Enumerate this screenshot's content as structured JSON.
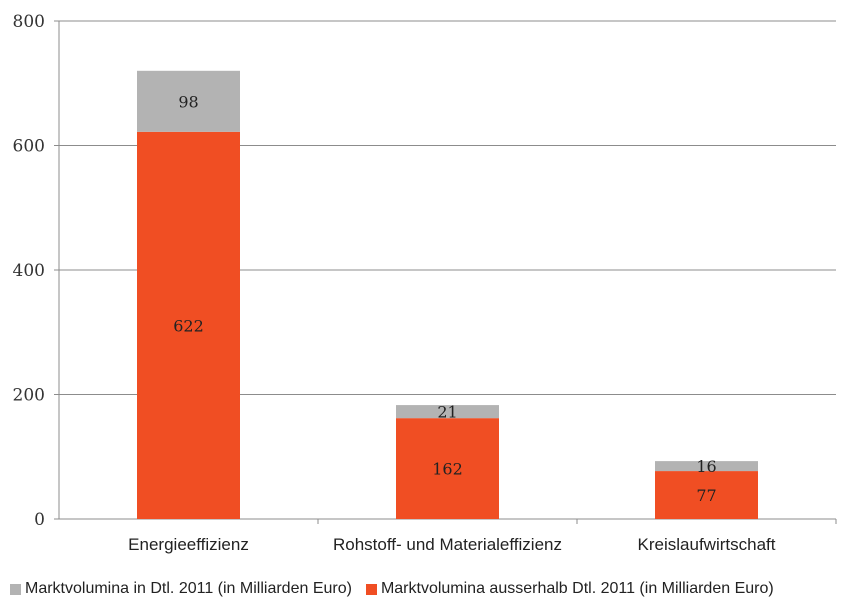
{
  "chart_data": {
    "type": "bar",
    "stacked": true,
    "categories": [
      "Energieeffizienz",
      "Rohstoff- und Materialeffizienz",
      "Kreislaufwirtschaft"
    ],
    "series": [
      {
        "name": "Marktvolumina ausserhalb Dtl. 2011 (in Milliarden Euro)",
        "values": [
          622,
          162,
          77
        ],
        "color": "#f04e23",
        "labels": [
          "622",
          "162",
          "77"
        ]
      },
      {
        "name": "Marktvolumina in Dtl. 2011 (in Milliarden Euro)",
        "values": [
          98,
          21,
          16
        ],
        "color": "#b3b3b3",
        "labels": [
          "98",
          "21",
          "16"
        ]
      }
    ],
    "yticks": [
      "0",
      "200",
      "400",
      "600",
      "800"
    ],
    "ylim": [
      0,
      800
    ],
    "grid": true,
    "legend_position": "bottom"
  },
  "legend": {
    "items": [
      {
        "label": "Marktvolumina in Dtl. 2011 (in Milliarden Euro)",
        "color": "#b3b3b3"
      },
      {
        "label": "Marktvolumina ausserhalb Dtl. 2011 (in Milliarden Euro)",
        "color": "#f04e23"
      }
    ]
  }
}
